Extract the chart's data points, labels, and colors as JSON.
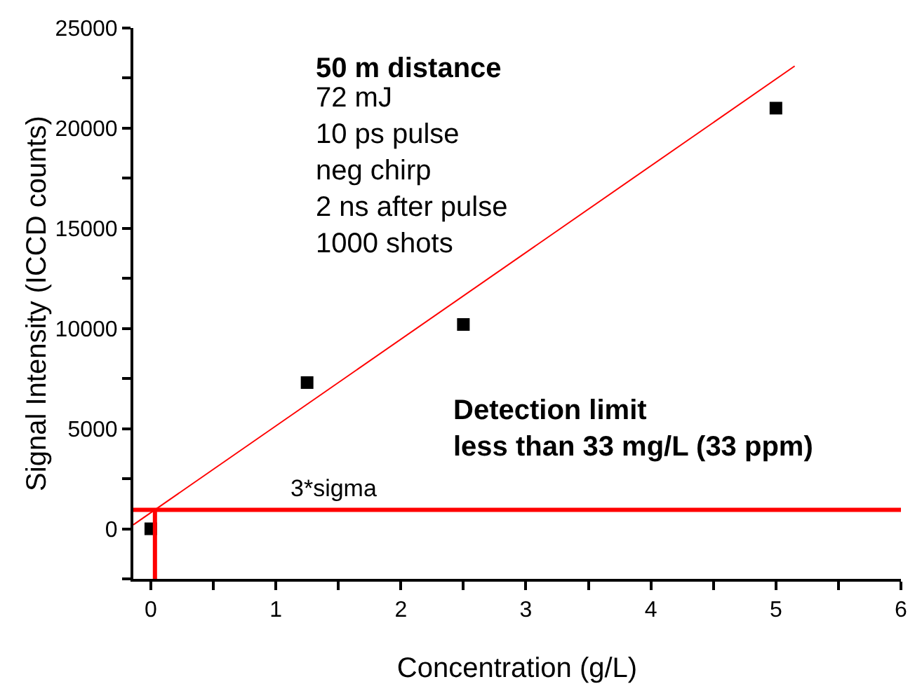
{
  "chart_data": {
    "type": "scatter",
    "xlabel": "Concentration (g/L)",
    "ylabel": "Signal Intensity (ICCD counts)",
    "x": [
      0,
      1.25,
      2.5,
      5
    ],
    "series": [
      {
        "color": "#000000",
        "values": [
          0,
          7300,
          10200,
          21000
        ],
        "marker": "square"
      },
      {
        "type": "line",
        "color": "#ff0000",
        "x": [
          -0.14,
          5.15
        ],
        "values": [
          200,
          23100
        ]
      },
      {
        "type": "line",
        "color": "#ff0000",
        "x": [
          0.033,
          0.033
        ],
        "values": [
          -2500,
          950
        ]
      }
    ],
    "ref_lines": [
      {
        "axis": "y",
        "value": 950,
        "label": "3*sigma",
        "color": "#ff0000"
      }
    ],
    "annotations": [
      "50 m distance",
      "72 mJ\n10 ps pulse\nneg chirp\n2 ns after pulse\n1000 shots",
      "Detection limit\nless than 33 mg/L (33 ppm)"
    ],
    "xlim": [
      -0.14,
      6
    ],
    "xticks": [
      0,
      {
        "value": 0.5,
        "label": null
      },
      1,
      {
        "value": 1.5,
        "label": null
      },
      2,
      {
        "value": 2.5,
        "label": null
      },
      3,
      {
        "value": 3.5,
        "label": null
      },
      4,
      {
        "value": 4.5,
        "label": null
      },
      5,
      {
        "value": 5.5,
        "label": null
      },
      6
    ],
    "ylim": [
      -2500,
      25000
    ],
    "yticks": [
      {
        "value": -2500,
        "label": null
      },
      0,
      {
        "value": 2500,
        "label": null
      },
      5000,
      {
        "value": 7500,
        "label": null
      },
      10000,
      {
        "value": 12500,
        "label": null
      },
      15000,
      {
        "value": 17500,
        "label": null
      },
      20000,
      {
        "value": 22500,
        "label": null
      },
      25000
    ],
    "grid": false
  }
}
